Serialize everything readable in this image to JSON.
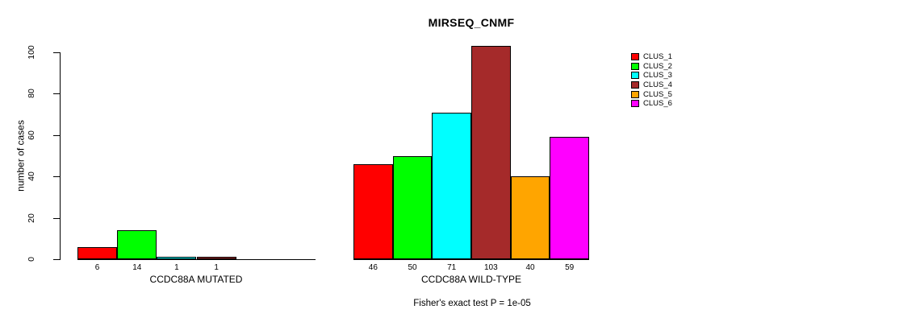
{
  "chart_data": {
    "type": "bar",
    "title": "MIRSEQ_CNMF",
    "ylabel": "number of cases",
    "ylim": [
      0,
      100
    ],
    "yticks": [
      0,
      20,
      40,
      60,
      80,
      100
    ],
    "grid": false,
    "legend_position": "right",
    "legend": [
      "CLUS_1",
      "CLUS_2",
      "CLUS_3",
      "CLUS_4",
      "CLUS_5",
      "CLUS_6"
    ],
    "series_colors": [
      "#FF0000",
      "#00FF00",
      "#00FFFF",
      "#A52A2A",
      "#FFA500",
      "#FF00FF"
    ],
    "groups": [
      {
        "label": "CCDC88A MUTATED",
        "values": [
          6,
          14,
          1,
          1,
          0,
          0
        ],
        "bar_labels": [
          "6",
          "14",
          "1",
          "1",
          "",
          ""
        ]
      },
      {
        "label": "CCDC88A WILD-TYPE",
        "values": [
          46,
          50,
          71,
          103,
          40,
          59
        ],
        "bar_labels": [
          "46",
          "50",
          "71",
          "103",
          "40",
          "59"
        ]
      }
    ],
    "annotation": "Fisher's exact test P = 1e-05"
  },
  "colors": {
    "background": "#FFFFFF",
    "axis": "#000000",
    "text": "#000000"
  }
}
